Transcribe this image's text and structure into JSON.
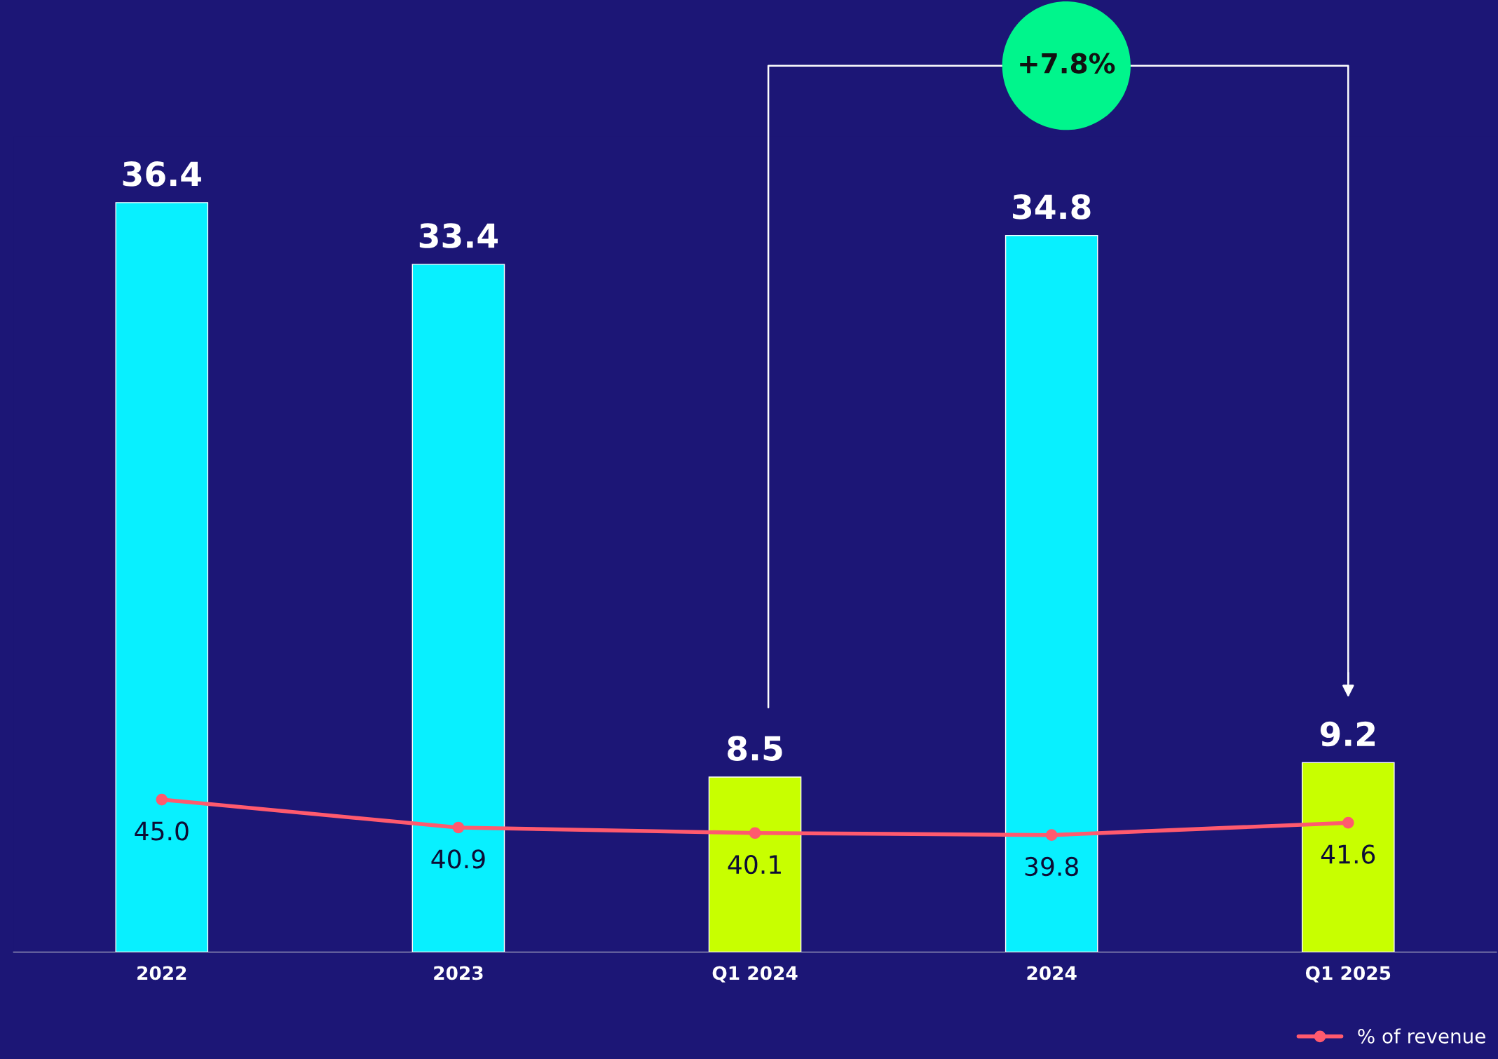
{
  "chart_data": {
    "type": "bar",
    "categories": [
      "2022",
      "2023",
      "Q1 2024",
      "2024",
      "Q1 2025"
    ],
    "legend": "bottom right",
    "grid": false,
    "series": [
      {
        "colors": [
          "#08f0ff",
          "#08f0ff",
          "#c8ff00",
          "#08f0ff",
          "#c8ff00"
        ],
        "values": [
          36.4,
          33.4,
          8.5,
          34.8,
          9.2
        ],
        "value_labels": [
          "36.4",
          "33.4",
          "8.5",
          "34.8",
          "9.2"
        ]
      },
      {
        "type": "line",
        "name": "% of revenue",
        "color": "#ff5a6e",
        "axis": "y2",
        "marker": "circle",
        "values": [
          45.0,
          40.9,
          40.1,
          39.8,
          41.6
        ],
        "value_labels": [
          "45.0",
          "40.9",
          "40.1",
          "39.8",
          "41.6"
        ]
      }
    ],
    "annotations": [
      "+7.8%"
    ]
  }
}
